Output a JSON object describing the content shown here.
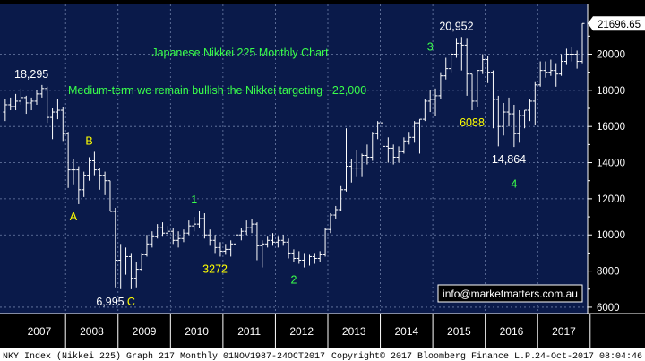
{
  "colors": {
    "background": "#000000",
    "panel": "#0a1a4a",
    "grid": "#6e7fa8",
    "bar": "#ffffff",
    "title_green": "#39ff4a",
    "label_yellow": "#ffff00",
    "label_white": "#ffffff",
    "footer_bg": "#ffffff",
    "footer_text": "#000000",
    "price_box_bg": "#ffffff",
    "email_text": "#ffffff"
  },
  "chart_data": {
    "type": "ohlc",
    "title": "Japanese Nikkei 225 Monthly Chart",
    "subtitle": "Medium-term we remain bullish the Nikkei targeting ~22,000",
    "y_axis": {
      "ticks": [
        6000,
        8000,
        10000,
        12000,
        14000,
        16000,
        18000,
        20000
      ],
      "tick_labels": [
        "6000",
        "8000",
        "10000",
        "12000",
        "14000",
        "16000",
        "18000",
        "20000"
      ],
      "ylim": [
        5650,
        22750
      ],
      "position": "right"
    },
    "x_axis": {
      "categories": [
        "2007",
        "2008",
        "2009",
        "2010",
        "2011",
        "2012",
        "2013",
        "2014",
        "2015",
        "2016",
        "2017"
      ],
      "range": [
        2006.75,
        2017.85
      ]
    },
    "last_price_label": "21696.65",
    "last_price_value": 21696.65,
    "series": [
      {
        "x": 2006.85,
        "o": 16800,
        "h": 17500,
        "l": 16300,
        "c": 17200
      },
      {
        "x": 2006.95,
        "o": 17200,
        "h": 17600,
        "l": 16900,
        "c": 17100
      },
      {
        "x": 2007.05,
        "o": 17100,
        "h": 17800,
        "l": 16900,
        "c": 17400
      },
      {
        "x": 2007.15,
        "o": 17400,
        "h": 18100,
        "l": 17200,
        "c": 17600
      },
      {
        "x": 2007.25,
        "o": 17600,
        "h": 17700,
        "l": 16700,
        "c": 17300
      },
      {
        "x": 2007.35,
        "o": 17300,
        "h": 17600,
        "l": 16900,
        "c": 17400
      },
      {
        "x": 2007.45,
        "o": 17400,
        "h": 18000,
        "l": 17200,
        "c": 17800
      },
      {
        "x": 2007.55,
        "o": 17800,
        "h": 18295,
        "l": 17600,
        "c": 18100
      },
      {
        "x": 2007.65,
        "o": 18100,
        "h": 18200,
        "l": 16200,
        "c": 16500
      },
      {
        "x": 2007.75,
        "o": 16500,
        "h": 17000,
        "l": 15300,
        "c": 16800
      },
      {
        "x": 2007.85,
        "o": 16800,
        "h": 17500,
        "l": 16400,
        "c": 16900
      },
      {
        "x": 2007.95,
        "o": 16900,
        "h": 17100,
        "l": 15200,
        "c": 15600
      },
      {
        "x": 2008.05,
        "o": 15600,
        "h": 15700,
        "l": 12600,
        "c": 13600
      },
      {
        "x": 2008.15,
        "o": 13600,
        "h": 14200,
        "l": 12800,
        "c": 13600
      },
      {
        "x": 2008.25,
        "o": 13600,
        "h": 13800,
        "l": 11700,
        "c": 12500
      },
      {
        "x": 2008.35,
        "o": 12500,
        "h": 13500,
        "l": 12100,
        "c": 13300
      },
      {
        "x": 2008.45,
        "o": 13300,
        "h": 14300,
        "l": 13000,
        "c": 14100
      },
      {
        "x": 2008.55,
        "o": 14100,
        "h": 14600,
        "l": 13300,
        "c": 13600
      },
      {
        "x": 2008.65,
        "o": 13600,
        "h": 13700,
        "l": 12500,
        "c": 13300
      },
      {
        "x": 2008.75,
        "o": 13300,
        "h": 13500,
        "l": 12200,
        "c": 13000
      },
      {
        "x": 2008.85,
        "o": 13000,
        "h": 13000,
        "l": 11300,
        "c": 11300
      },
      {
        "x": 2008.95,
        "o": 11300,
        "h": 11500,
        "l": 7100,
        "c": 8600
      },
      {
        "x": 2009.05,
        "o": 8600,
        "h": 9500,
        "l": 7000,
        "c": 8500
      },
      {
        "x": 2009.15,
        "o": 8500,
        "h": 9300,
        "l": 7800,
        "c": 8800
      },
      {
        "x": 2009.25,
        "o": 8800,
        "h": 9000,
        "l": 6995,
        "c": 7600
      },
      {
        "x": 2009.35,
        "o": 7600,
        "h": 8500,
        "l": 7100,
        "c": 8100
      },
      {
        "x": 2009.45,
        "o": 8100,
        "h": 9000,
        "l": 8000,
        "c": 8900
      },
      {
        "x": 2009.55,
        "o": 8900,
        "h": 10000,
        "l": 8800,
        "c": 9500
      },
      {
        "x": 2009.65,
        "o": 9500,
        "h": 10200,
        "l": 9300,
        "c": 9900
      },
      {
        "x": 2009.75,
        "o": 9900,
        "h": 10600,
        "l": 9800,
        "c": 10400
      },
      {
        "x": 2009.85,
        "o": 10400,
        "h": 10700,
        "l": 9900,
        "c": 10100
      },
      {
        "x": 2009.95,
        "o": 10100,
        "h": 10500,
        "l": 9900,
        "c": 10200
      },
      {
        "x": 2010.05,
        "o": 10200,
        "h": 10400,
        "l": 9500,
        "c": 9700
      },
      {
        "x": 2010.15,
        "o": 9700,
        "h": 10200,
        "l": 9300,
        "c": 9800
      },
      {
        "x": 2010.25,
        "o": 9800,
        "h": 10300,
        "l": 9600,
        "c": 10100
      },
      {
        "x": 2010.35,
        "o": 10100,
        "h": 10800,
        "l": 10000,
        "c": 10500
      },
      {
        "x": 2010.45,
        "o": 10500,
        "h": 11000,
        "l": 10200,
        "c": 10600
      },
      {
        "x": 2010.55,
        "o": 10600,
        "h": 11339,
        "l": 10400,
        "c": 10900
      },
      {
        "x": 2010.65,
        "o": 10900,
        "h": 11200,
        "l": 9800,
        "c": 10000
      },
      {
        "x": 2010.75,
        "o": 10000,
        "h": 10300,
        "l": 9400,
        "c": 9700
      },
      {
        "x": 2010.85,
        "o": 9700,
        "h": 10000,
        "l": 9000,
        "c": 9300
      },
      {
        "x": 2010.95,
        "o": 9300,
        "h": 9600,
        "l": 8800,
        "c": 9100
      },
      {
        "x": 2011.05,
        "o": 9100,
        "h": 9500,
        "l": 8900,
        "c": 9200
      },
      {
        "x": 2011.15,
        "o": 9200,
        "h": 9700,
        "l": 8800,
        "c": 9500
      },
      {
        "x": 2011.25,
        "o": 9500,
        "h": 10200,
        "l": 9300,
        "c": 10000
      },
      {
        "x": 2011.35,
        "o": 10000,
        "h": 10400,
        "l": 9700,
        "c": 10200
      },
      {
        "x": 2011.45,
        "o": 10200,
        "h": 10800,
        "l": 10000,
        "c": 10400
      },
      {
        "x": 2011.55,
        "o": 10400,
        "h": 10900,
        "l": 10100,
        "c": 10600
      },
      {
        "x": 2011.65,
        "o": 10600,
        "h": 10700,
        "l": 8600,
        "c": 9400
      },
      {
        "x": 2011.75,
        "o": 9400,
        "h": 9700,
        "l": 8200,
        "c": 9500
      },
      {
        "x": 2011.85,
        "o": 9500,
        "h": 9900,
        "l": 9300,
        "c": 9700
      },
      {
        "x": 2011.95,
        "o": 9700,
        "h": 10100,
        "l": 9400,
        "c": 9600
      },
      {
        "x": 2012.05,
        "o": 9600,
        "h": 9900,
        "l": 9300,
        "c": 9700
      },
      {
        "x": 2012.15,
        "o": 9700,
        "h": 10000,
        "l": 9400,
        "c": 9600
      },
      {
        "x": 2012.25,
        "o": 9600,
        "h": 9800,
        "l": 8700,
        "c": 9000
      },
      {
        "x": 2012.35,
        "o": 9000,
        "h": 9200,
        "l": 8500,
        "c": 8700
      },
      {
        "x": 2012.45,
        "o": 8700,
        "h": 9100,
        "l": 8400,
        "c": 8600
      },
      {
        "x": 2012.55,
        "o": 8600,
        "h": 9000,
        "l": 8200,
        "c": 8500
      },
      {
        "x": 2012.65,
        "o": 8500,
        "h": 8900,
        "l": 8300,
        "c": 8800
      },
      {
        "x": 2012.75,
        "o": 8800,
        "h": 9000,
        "l": 8400,
        "c": 8700
      },
      {
        "x": 2012.85,
        "o": 8700,
        "h": 9100,
        "l": 8500,
        "c": 8900
      },
      {
        "x": 2012.95,
        "o": 8900,
        "h": 10400,
        "l": 8800,
        "c": 10300
      },
      {
        "x": 2013.05,
        "o": 10300,
        "h": 11200,
        "l": 10100,
        "c": 11100
      },
      {
        "x": 2013.15,
        "o": 11100,
        "h": 11600,
        "l": 10900,
        "c": 11400
      },
      {
        "x": 2013.25,
        "o": 11400,
        "h": 12700,
        "l": 11300,
        "c": 12500
      },
      {
        "x": 2013.35,
        "o": 12500,
        "h": 15900,
        "l": 12400,
        "c": 13800
      },
      {
        "x": 2013.45,
        "o": 13800,
        "h": 14200,
        "l": 12900,
        "c": 13700
      },
      {
        "x": 2013.55,
        "o": 13700,
        "h": 14700,
        "l": 13200,
        "c": 13700
      },
      {
        "x": 2013.65,
        "o": 13700,
        "h": 14500,
        "l": 13200,
        "c": 14400
      },
      {
        "x": 2013.75,
        "o": 14400,
        "h": 15000,
        "l": 13900,
        "c": 14300
      },
      {
        "x": 2013.85,
        "o": 14300,
        "h": 15700,
        "l": 14100,
        "c": 15600
      },
      {
        "x": 2013.95,
        "o": 15600,
        "h": 16300,
        "l": 15300,
        "c": 16200
      },
      {
        "x": 2014.05,
        "o": 16200,
        "h": 16100,
        "l": 14600,
        "c": 14900
      },
      {
        "x": 2014.15,
        "o": 14900,
        "h": 15400,
        "l": 14000,
        "c": 14800
      },
      {
        "x": 2014.25,
        "o": 14800,
        "h": 15000,
        "l": 13900,
        "c": 14300
      },
      {
        "x": 2014.35,
        "o": 14300,
        "h": 14900,
        "l": 14000,
        "c": 14600
      },
      {
        "x": 2014.45,
        "o": 14600,
        "h": 15400,
        "l": 14500,
        "c": 15200
      },
      {
        "x": 2014.55,
        "o": 15200,
        "h": 15700,
        "l": 15000,
        "c": 15400
      },
      {
        "x": 2014.65,
        "o": 15400,
        "h": 16300,
        "l": 15100,
        "c": 16200
      },
      {
        "x": 2014.75,
        "o": 16200,
        "h": 16400,
        "l": 14500,
        "c": 16400
      },
      {
        "x": 2014.85,
        "o": 16400,
        "h": 17500,
        "l": 16300,
        "c": 17400
      },
      {
        "x": 2014.95,
        "o": 17400,
        "h": 18000,
        "l": 16800,
        "c": 17500
      },
      {
        "x": 2015.05,
        "o": 17500,
        "h": 18100,
        "l": 16600,
        "c": 17700
      },
      {
        "x": 2015.15,
        "o": 17700,
        "h": 19000,
        "l": 17500,
        "c": 18800
      },
      {
        "x": 2015.25,
        "o": 18800,
        "h": 19800,
        "l": 18600,
        "c": 19200
      },
      {
        "x": 2015.35,
        "o": 19200,
        "h": 20100,
        "l": 19000,
        "c": 20000
      },
      {
        "x": 2015.45,
        "o": 20000,
        "h": 20900,
        "l": 19800,
        "c": 20600
      },
      {
        "x": 2015.55,
        "o": 20600,
        "h": 20952,
        "l": 19100,
        "c": 20500
      },
      {
        "x": 2015.65,
        "o": 20500,
        "h": 20900,
        "l": 17700,
        "c": 18900
      },
      {
        "x": 2015.75,
        "o": 18900,
        "h": 18900,
        "l": 16900,
        "c": 17400
      },
      {
        "x": 2015.85,
        "o": 17400,
        "h": 19100,
        "l": 17100,
        "c": 19100
      },
      {
        "x": 2015.95,
        "o": 19100,
        "h": 20000,
        "l": 18900,
        "c": 19700
      },
      {
        "x": 2016.05,
        "o": 19700,
        "h": 19900,
        "l": 18400,
        "c": 19000
      },
      {
        "x": 2016.15,
        "o": 19000,
        "h": 19100,
        "l": 15900,
        "c": 17500
      },
      {
        "x": 2016.25,
        "o": 17500,
        "h": 17700,
        "l": 14900,
        "c": 16000
      },
      {
        "x": 2016.35,
        "o": 16000,
        "h": 17300,
        "l": 15500,
        "c": 16800
      },
      {
        "x": 2016.45,
        "o": 16800,
        "h": 17600,
        "l": 16000,
        "c": 16700
      },
      {
        "x": 2016.55,
        "o": 16700,
        "h": 17200,
        "l": 14864,
        "c": 15600
      },
      {
        "x": 2016.65,
        "o": 15600,
        "h": 16900,
        "l": 15100,
        "c": 16600
      },
      {
        "x": 2016.75,
        "o": 16600,
        "h": 16900,
        "l": 15900,
        "c": 16900
      },
      {
        "x": 2016.85,
        "o": 16900,
        "h": 17500,
        "l": 16300,
        "c": 17400
      },
      {
        "x": 2016.95,
        "o": 17400,
        "h": 18500,
        "l": 16100,
        "c": 18300
      },
      {
        "x": 2017.05,
        "o": 18300,
        "h": 19600,
        "l": 18200,
        "c": 19100
      },
      {
        "x": 2017.15,
        "o": 19100,
        "h": 19600,
        "l": 18700,
        "c": 19000
      },
      {
        "x": 2017.25,
        "o": 19000,
        "h": 19700,
        "l": 18800,
        "c": 19100
      },
      {
        "x": 2017.35,
        "o": 19100,
        "h": 19500,
        "l": 18200,
        "c": 18900
      },
      {
        "x": 2017.45,
        "o": 18900,
        "h": 20000,
        "l": 18800,
        "c": 19600
      },
      {
        "x": 2017.55,
        "o": 19600,
        "h": 20300,
        "l": 19400,
        "c": 20000
      },
      {
        "x": 2017.65,
        "o": 20000,
        "h": 20400,
        "l": 19600,
        "c": 20000
      },
      {
        "x": 2017.75,
        "o": 20000,
        "h": 20200,
        "l": 19200,
        "c": 19600
      },
      {
        "x": 2017.85,
        "o": 19600,
        "h": 21696.65,
        "l": 19500,
        "c": 21696.65
      }
    ],
    "annotations": [
      {
        "text": "18,295",
        "color": "white",
        "x": 2007.35,
        "y": 18300,
        "anchor": "top"
      },
      {
        "text": "A",
        "color": "yellow",
        "x": 2008.15,
        "y": 11700,
        "anchor": "bottom"
      },
      {
        "text": "B",
        "color": "yellow",
        "x": 2008.45,
        "y": 14600,
        "anchor": "top"
      },
      {
        "text": "6,995",
        "color": "white",
        "x": 2008.85,
        "y": 6995,
        "anchor": "bottom"
      },
      {
        "text": "C",
        "color": "yellow",
        "x": 2009.25,
        "y": 6995,
        "anchor": "bottom"
      },
      {
        "text": "1",
        "color": "green",
        "x": 2010.45,
        "y": 11339,
        "anchor": "top"
      },
      {
        "text": "3272",
        "color": "yellow",
        "x": 2010.85,
        "y": 8800,
        "anchor": "bottom"
      },
      {
        "text": "2",
        "color": "green",
        "x": 2012.35,
        "y": 8200,
        "anchor": "bottom"
      },
      {
        "text": "3",
        "color": "green",
        "x": 2014.95,
        "y": 19800,
        "anchor": "top"
      },
      {
        "text": "20,952",
        "color": "white",
        "x": 2015.45,
        "y": 20952,
        "anchor": "top"
      },
      {
        "text": "6088",
        "color": "yellow",
        "x": 2015.75,
        "y": 16900,
        "anchor": "bottom"
      },
      {
        "text": "14,864",
        "color": "white",
        "x": 2016.45,
        "y": 14864,
        "anchor": "bottom"
      },
      {
        "text": "4",
        "color": "green",
        "x": 2016.55,
        "y": 13500,
        "anchor": "bottom"
      }
    ]
  },
  "labels": {
    "title": "Japanese Nikkei 225 Monthly Chart",
    "subtitle": "Medium-term we remain bullish the Nikkei targeting ~22,000",
    "email": "info@marketmatters.com.au"
  },
  "footer": {
    "left": "NKY Index (Nikkei 225) Graph 217  Monthly 01NOV1987-24OCT2017",
    "center": "Copyright© 2017 Bloomberg Finance L.P.",
    "right": "24-Oct-2017 08:04:46"
  }
}
